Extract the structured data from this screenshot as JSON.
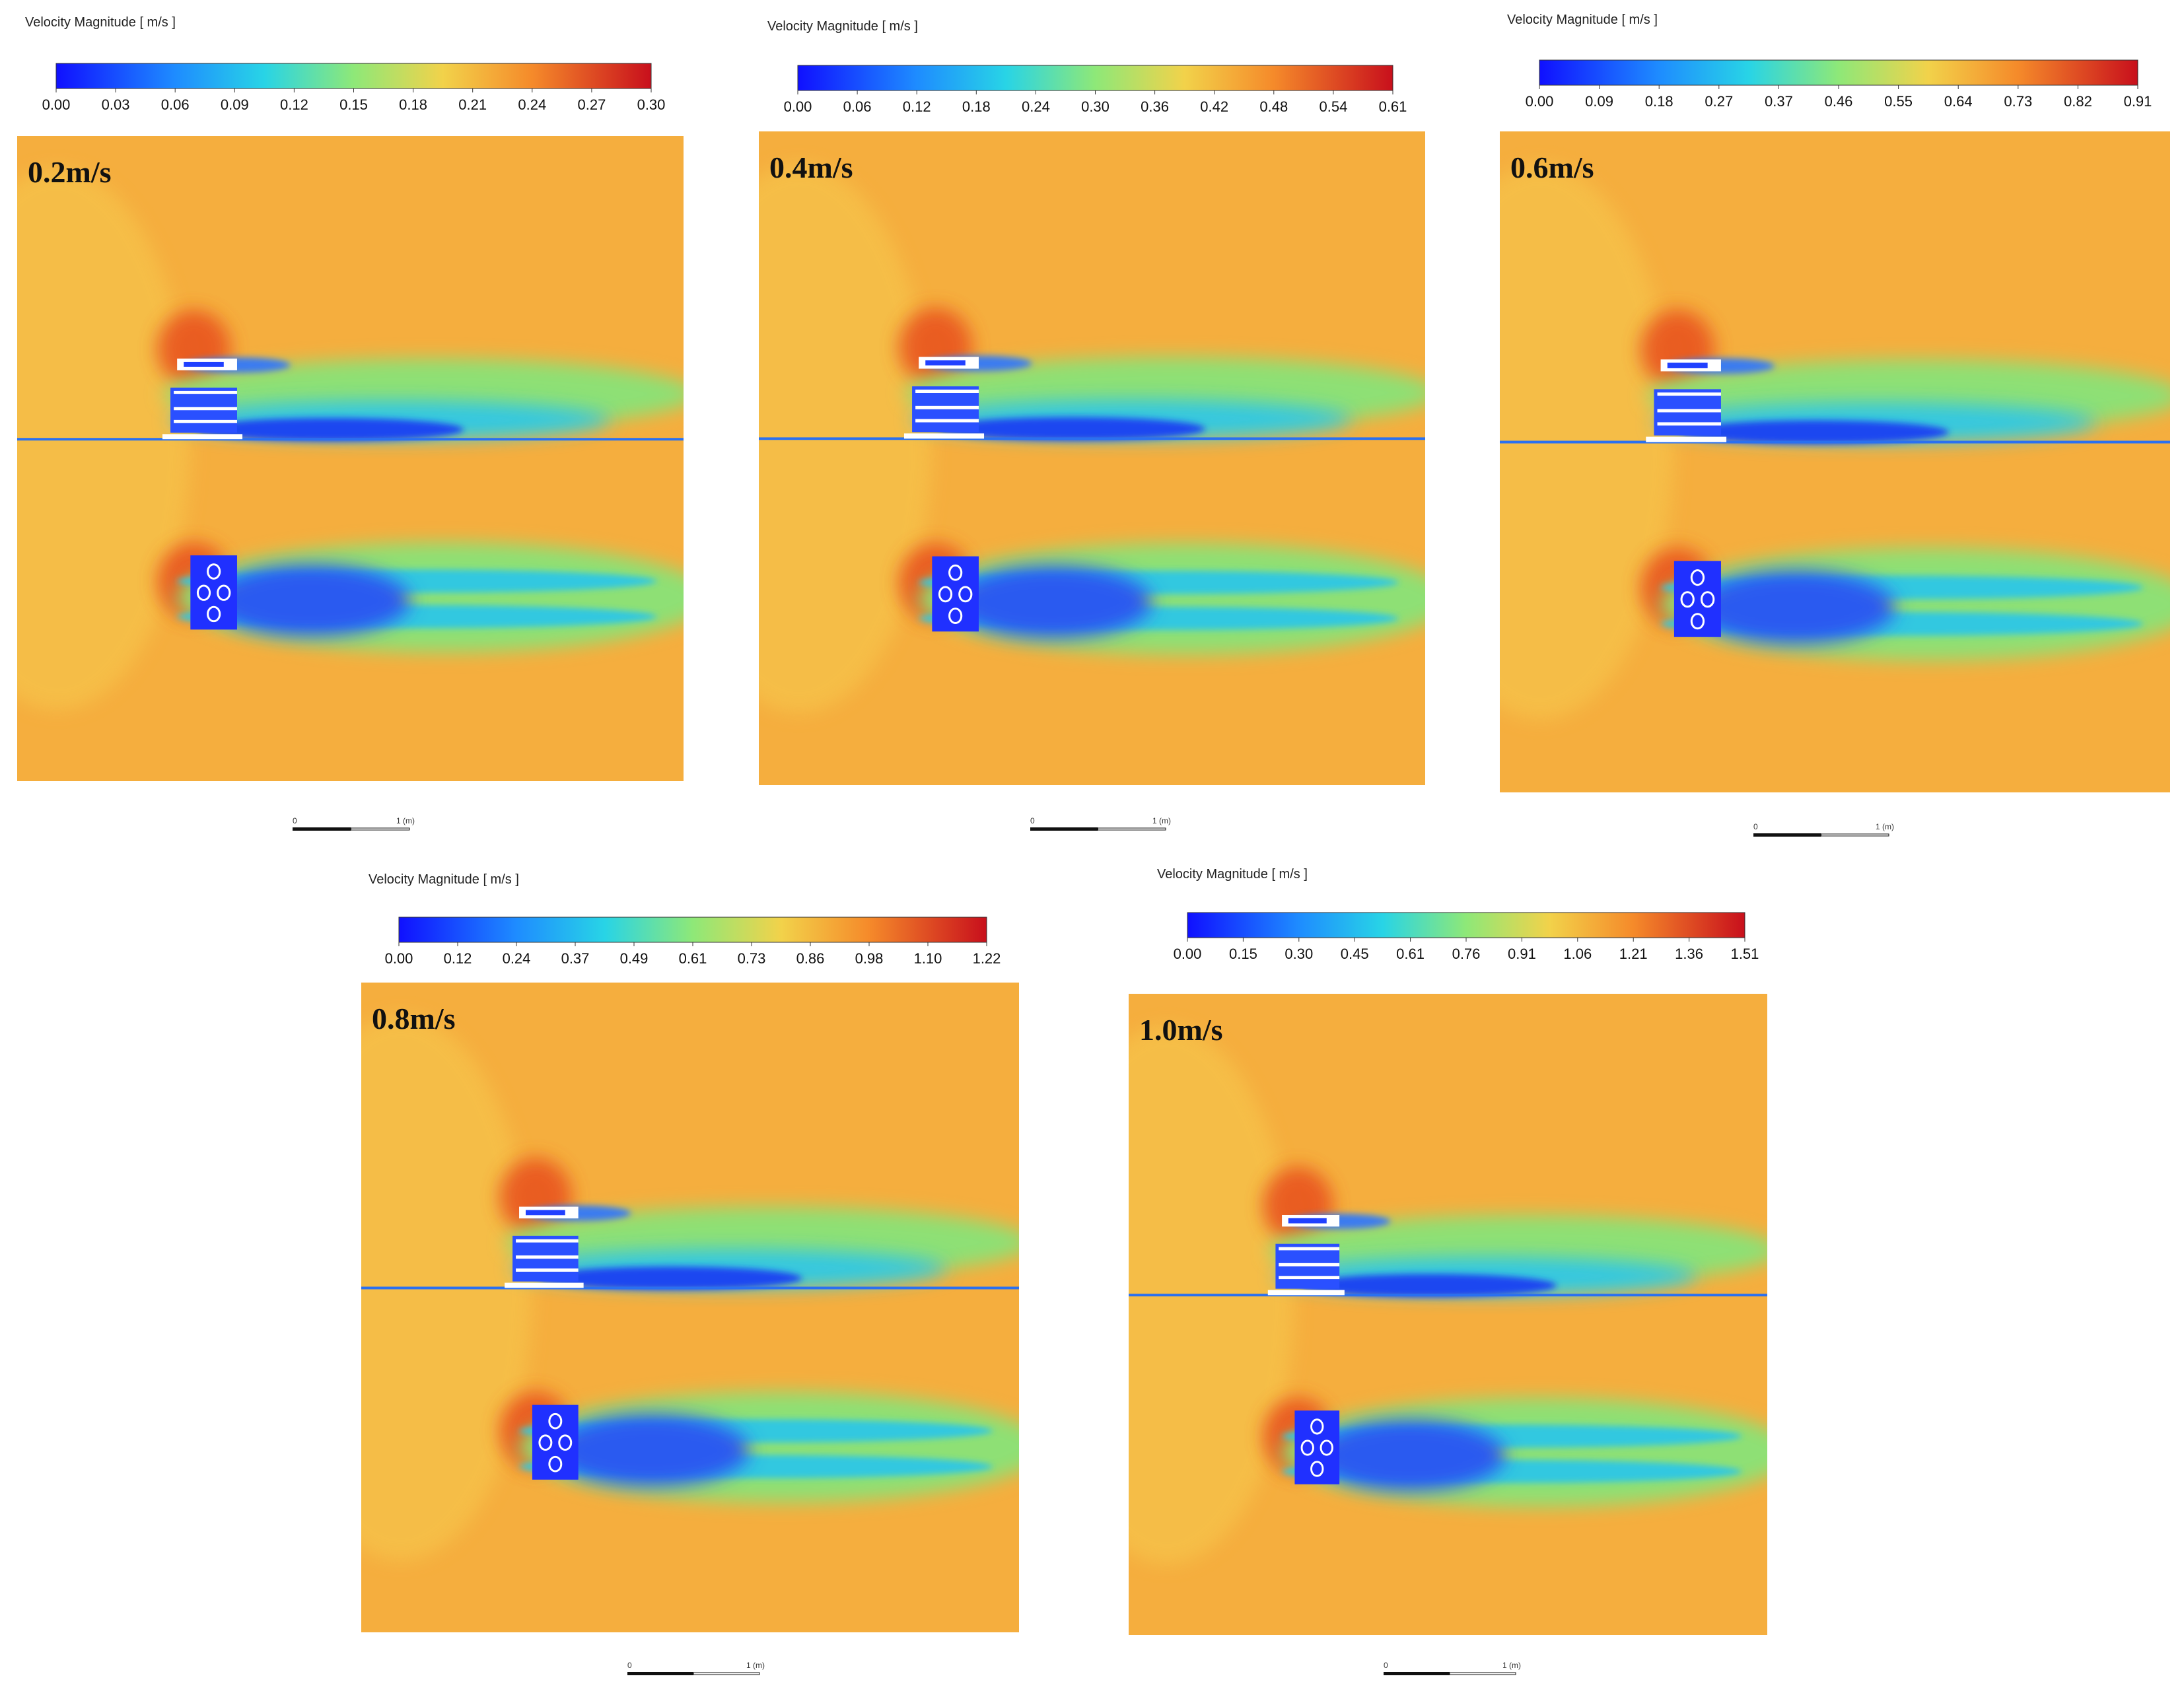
{
  "panels": [
    {
      "legend_title": "Velocity Magnitude [ m/s ]",
      "ticks": [
        "0.00",
        "0.03",
        "0.06",
        "0.09",
        "0.12",
        "0.15",
        "0.18",
        "0.21",
        "0.24",
        "0.27",
        "0.30"
      ],
      "label": "0.2m/s",
      "scale_start": "0",
      "scale_end": "1 (m)"
    },
    {
      "legend_title": "Velocity Magnitude [ m/s ]",
      "ticks": [
        "0.00",
        "0.06",
        "0.12",
        "0.18",
        "0.24",
        "0.30",
        "0.36",
        "0.42",
        "0.48",
        "0.54",
        "0.61"
      ],
      "label": "0.4m/s",
      "scale_start": "0",
      "scale_end": "1 (m)"
    },
    {
      "legend_title": "Velocity Magnitude [ m/s ]",
      "ticks": [
        "0.00",
        "0.09",
        "0.18",
        "0.27",
        "0.37",
        "0.46",
        "0.55",
        "0.64",
        "0.73",
        "0.82",
        "0.91"
      ],
      "label": "0.6m/s",
      "scale_start": "0",
      "scale_end": "1 (m)"
    },
    {
      "legend_title": "Velocity Magnitude [ m/s ]",
      "ticks": [
        "0.00",
        "0.12",
        "0.24",
        "0.37",
        "0.49",
        "0.61",
        "0.73",
        "0.86",
        "0.98",
        "1.10",
        "1.22"
      ],
      "label": "0.8m/s",
      "scale_start": "0",
      "scale_end": "1 (m)"
    },
    {
      "legend_title": "Velocity Magnitude [ m/s ]",
      "ticks": [
        "0.00",
        "0.15",
        "0.30",
        "0.45",
        "0.61",
        "0.76",
        "0.91",
        "1.06",
        "1.21",
        "1.36",
        "1.51"
      ],
      "label": "1.0m/s",
      "scale_start": "0",
      "scale_end": "1 (m)"
    }
  ]
}
